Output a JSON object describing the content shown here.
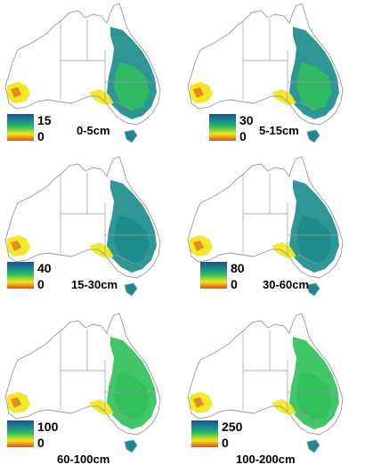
{
  "panels": [
    {
      "depth": "0-5cm",
      "legend_max": "15",
      "legend_min": "0"
    },
    {
      "depth": "5-15cm",
      "legend_max": "30",
      "legend_min": "0"
    },
    {
      "depth": "15-30cm",
      "legend_max": "40",
      "legend_min": "0"
    },
    {
      "depth": "30-60cm",
      "legend_max": "80",
      "legend_min": "0"
    },
    {
      "depth": "60-100cm",
      "legend_max": "100",
      "legend_min": "0"
    },
    {
      "depth": "100-200cm",
      "legend_max": "250",
      "legend_min": "0"
    }
  ],
  "colors": {
    "scale": [
      "#1f4f8f",
      "#1a8a8a",
      "#2fbf5a",
      "#f2e61a",
      "#d8501e"
    ],
    "outline": "#9a9a9a"
  }
}
